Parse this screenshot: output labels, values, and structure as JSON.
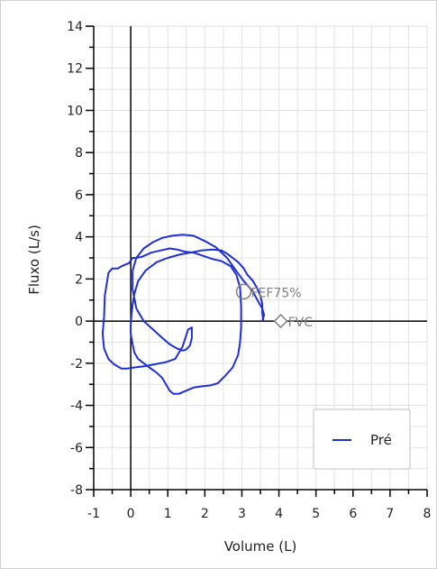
{
  "chart_data": {
    "type": "line",
    "title": "",
    "xlabel": "Volume (L)",
    "ylabel": "Fluxo (L/s)",
    "xlim": [
      -1,
      8
    ],
    "ylim": [
      -8,
      14
    ],
    "grid": true,
    "legend_position": "bottom-right",
    "x_ticks": [
      "-1",
      "0",
      "1",
      "2",
      "3",
      "4",
      "5",
      "6",
      "7",
      "8"
    ],
    "y_ticks": [
      "14",
      "12",
      "10",
      "8",
      "6",
      "4",
      "2",
      "0",
      "-2",
      "-4",
      "-6",
      "-8"
    ],
    "series": [
      {
        "name": "Pré",
        "color": "#1f2fd8",
        "x": [
          3.55,
          3.6,
          3.55,
          3.45,
          3.3,
          3.05,
          2.8,
          2.6,
          2.3,
          2.0,
          1.7,
          1.4,
          1.1,
          0.85,
          0.6,
          0.35,
          0.15,
          0.05,
          0.05,
          0.15,
          0.35,
          0.6,
          0.85,
          1.05,
          1.25,
          1.4,
          1.5,
          1.6,
          1.65,
          1.65,
          1.55,
          1.4,
          1.2,
          0.95,
          0.65,
          0.35,
          0.1,
          -0.1,
          -0.25,
          -0.45,
          -0.6,
          -0.72,
          -0.76,
          -0.72,
          -0.7,
          -0.6,
          -0.5,
          -0.35,
          -0.25,
          -0.05,
          0.05,
          0.15,
          0.3,
          0.55,
          0.8,
          1.05,
          1.25,
          1.45,
          1.7,
          1.95,
          2.2,
          2.45,
          2.7,
          2.85,
          2.95,
          2.98,
          2.98,
          2.95,
          2.9,
          2.75,
          2.55,
          2.35,
          2.15,
          1.9,
          1.7,
          1.5,
          1.3,
          1.15,
          1.05,
          0.95,
          0.85,
          0.7,
          0.5,
          0.35,
          0.2,
          0.1,
          0.05,
          0.0,
          0.0,
          0.02,
          0.05,
          0.1,
          0.2,
          0.4,
          0.7,
          1.0,
          1.3,
          1.6,
          1.9,
          2.2,
          2.45,
          2.6,
          2.75,
          2.9,
          3.05,
          3.15,
          3.3,
          3.4,
          3.5,
          3.55,
          3.55,
          3.58
        ],
        "y": [
          0.0,
          0.3,
          0.6,
          0.9,
          1.4,
          1.9,
          2.5,
          3.0,
          3.5,
          3.8,
          4.05,
          4.1,
          4.05,
          3.95,
          3.75,
          3.45,
          3.0,
          2.4,
          1.5,
          0.6,
          0.0,
          -0.4,
          -0.8,
          -1.1,
          -1.3,
          -1.4,
          -1.35,
          -1.15,
          -0.8,
          -0.3,
          -0.4,
          -1.2,
          -1.8,
          -1.95,
          -2.05,
          -2.15,
          -2.2,
          -2.25,
          -2.25,
          -2.05,
          -1.8,
          -1.3,
          -0.6,
          0.2,
          1.2,
          2.3,
          2.5,
          2.5,
          2.6,
          2.75,
          3.0,
          3.0,
          3.05,
          3.25,
          3.35,
          3.45,
          3.4,
          3.3,
          3.25,
          3.1,
          2.95,
          2.85,
          2.6,
          2.2,
          1.6,
          0.7,
          -0.3,
          -1.0,
          -1.6,
          -2.2,
          -2.6,
          -2.95,
          -3.05,
          -3.1,
          -3.15,
          -3.3,
          -3.45,
          -3.45,
          -3.3,
          -3.0,
          -2.7,
          -2.45,
          -2.2,
          -2.0,
          -1.8,
          -1.5,
          -1.1,
          -0.6,
          -0.2,
          0.3,
          0.8,
          1.3,
          1.9,
          2.4,
          2.8,
          3.0,
          3.15,
          3.25,
          3.35,
          3.4,
          3.35,
          3.2,
          3.0,
          2.8,
          2.5,
          2.2,
          1.9,
          1.6,
          1.2,
          0.8,
          0.4,
          0.0
        ]
      }
    ],
    "annotations": [
      {
        "marker": "circle",
        "label": "FEF75%",
        "x": 3.05,
        "y": 1.4,
        "color": "#808080"
      },
      {
        "marker": "diamond",
        "label": "FVC",
        "x": 4.05,
        "y": 0.0,
        "color": "#808080"
      }
    ]
  }
}
